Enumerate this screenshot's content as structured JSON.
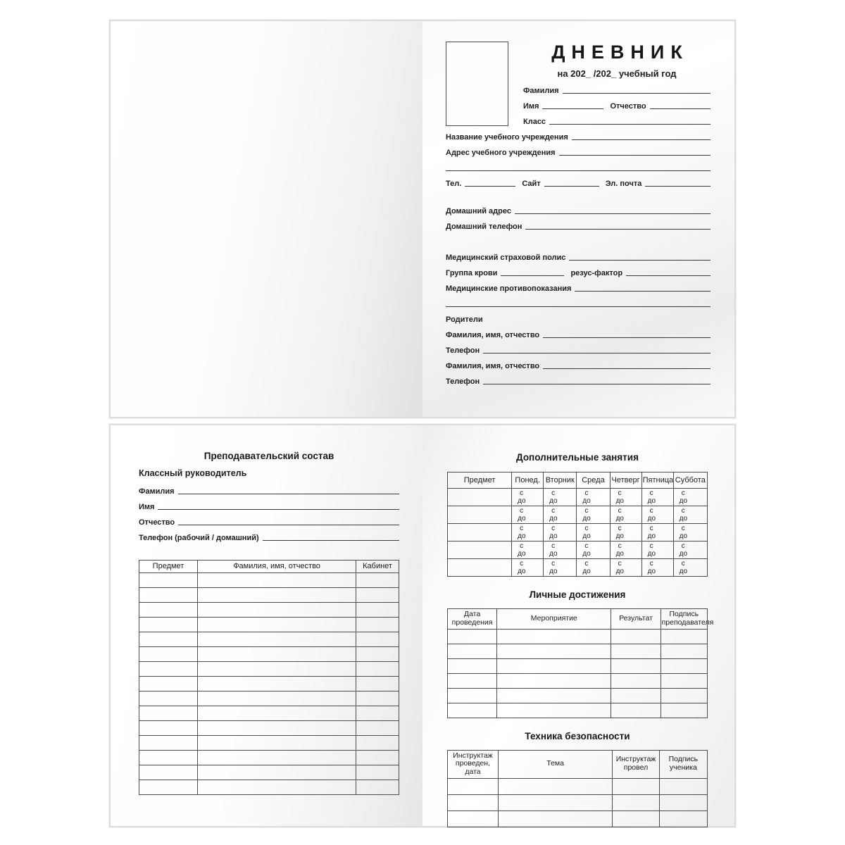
{
  "cover_page": {
    "title": "ДНЕВНИК",
    "subtitle": "на 202_ /202_ учебный год",
    "surname_label": "Фамилия",
    "name_label": "Имя",
    "patronymic_label": "Отчество",
    "class_label": "Класс",
    "school_name_label": "Название учебного учреждения",
    "school_address_label": "Адрес учебного учреждения",
    "tel_label": "Тел.",
    "site_label": "Сайт",
    "email_label": "Эл. почта",
    "home_address_label": "Домашний адрес",
    "home_phone_label": "Домашний телефон",
    "insurance_label": "Медицинский страховой полис",
    "blood_group_label": "Группа крови",
    "rh_factor_label": "резус-фактор",
    "contraindications_label": "Медицинские противопоказания",
    "parents_label": "Родители",
    "parent1_fio_label": "Фамилия, имя, отчество",
    "parent1_phone_label": "Телефон",
    "parent2_fio_label": "Фамилия, имя, отчество",
    "parent2_phone_label": "Телефон"
  },
  "teachers_page": {
    "title": "Преподавательский состав",
    "class_teacher_label": "Классный руководитель",
    "surname_label": "Фамилия",
    "name_label": "Имя",
    "patronymic_label": "Отчество",
    "phone_label": "Телефон (рабочий / домашний)",
    "table": {
      "headers": [
        "Предмет",
        "Фамилия, имя, отчество",
        "Кабинет"
      ],
      "empty_row_count": 15
    }
  },
  "activities_page": {
    "extra_classes": {
      "title": "Дополнительные занятия",
      "headers": [
        "Предмет",
        "Понед.",
        "Вторник",
        "Среда",
        "Четверг",
        "Пятница",
        "Суббота"
      ],
      "from_label": "с",
      "to_label": "до",
      "empty_row_count": 5
    },
    "achievements": {
      "title": "Личные достижения",
      "headers": [
        "Дата проведения",
        "Мероприятие",
        "Результат",
        "Подпись преподавателя"
      ],
      "empty_row_count": 6
    },
    "safety": {
      "title": "Техника безопасности",
      "headers": [
        "Инструктаж проведен, дата",
        "Тема",
        "Инструктаж провел",
        "Подпись ученика"
      ],
      "empty_row_count": 3
    }
  }
}
